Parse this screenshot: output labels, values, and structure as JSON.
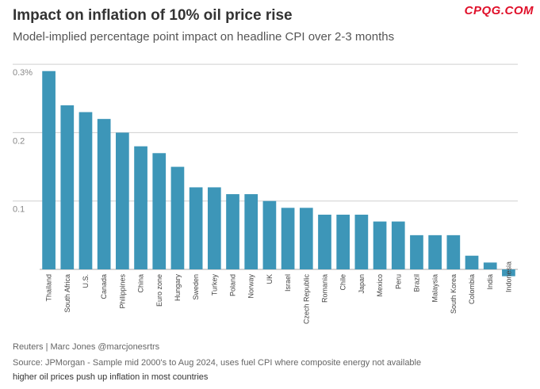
{
  "header": {
    "title": "Impact on inflation of 10% oil price rise",
    "subtitle": "Model-implied percentage point impact on headline CPI over 2-3 months",
    "watermark": "CPQG.COM"
  },
  "footer": {
    "credit": "Reuters | Marc Jones @marcjonesrtrs",
    "source": "Source: JPMorgan - Sample mid 2000's to Aug 2024, uses fuel CPI where composite energy not available",
    "note": "higher oil prices push up inflation in most countries"
  },
  "colors": {
    "bar": "#3d96b8",
    "grid": "#cfcfcf",
    "tick_text": "#888888",
    "category_text": "#444444"
  },
  "chart_data": {
    "type": "bar",
    "title": "Impact on inflation of 10% oil price rise",
    "ylabel": "",
    "xlabel": "",
    "ylim": [
      -0.01,
      0.3
    ],
    "grid": true,
    "yticks": [
      {
        "value": 0.3,
        "label": "0.3%"
      },
      {
        "value": 0.2,
        "label": "0.2"
      },
      {
        "value": 0.1,
        "label": "0.1"
      }
    ],
    "categories": [
      "Thailand",
      "South Africa",
      "U.S.",
      "Canada",
      "Philippines",
      "China",
      "Euro zone",
      "Hungary",
      "Sweden",
      "Turkey",
      "Poland",
      "Norway",
      "UK",
      "Israel",
      "Czech Republic",
      "Romania",
      "Chile",
      "Japan",
      "Mexico",
      "Peru",
      "Brazil",
      "Malaysia",
      "South Korea",
      "Colombia",
      "India",
      "Indonesia"
    ],
    "values": [
      0.29,
      0.24,
      0.23,
      0.22,
      0.2,
      0.18,
      0.17,
      0.15,
      0.12,
      0.12,
      0.11,
      0.11,
      0.1,
      0.09,
      0.09,
      0.08,
      0.08,
      0.08,
      0.07,
      0.07,
      0.05,
      0.05,
      0.05,
      0.02,
      0.01,
      -0.01
    ]
  }
}
